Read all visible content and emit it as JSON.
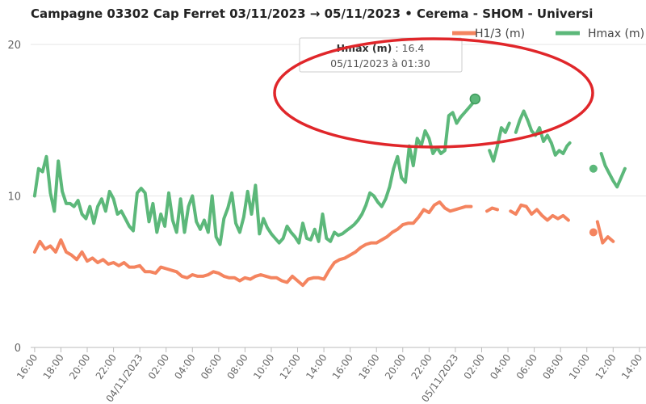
{
  "chart_data": {
    "type": "line",
    "title": "Campagne 03302 Cap Ferret 03/11/2023 → 05/11/2023   •   Cerema - SHOM - Universi",
    "y_ticks": [
      "0",
      "10",
      "20"
    ],
    "ylim": [
      0,
      20
    ],
    "grid": true,
    "x_ticks": [
      "16:00",
      "18:00",
      "20:00",
      "22:00",
      "04/11/2023",
      "02:00",
      "04:00",
      "06:00",
      "08:00",
      "10:00",
      "12:00",
      "14:00",
      "16:00",
      "18:00",
      "20:00",
      "22:00",
      "05/11/2023",
      "02:00",
      "04:00",
      "06:00",
      "08:00",
      "10:00",
      "12:00",
      "14:00"
    ],
    "x_hours_range": [
      -0.3,
      46.5
    ],
    "legend": [
      {
        "name": "H1/3 (m)",
        "color": "#f4845f"
      },
      {
        "name": "Hmax (m)",
        "color": "#5cb87a"
      }
    ],
    "series": [
      {
        "name": "Hmax (m)",
        "color": "#5cb87a",
        "segments": [
          [
            [
              0,
              10
            ],
            [
              0.3,
              11.8
            ],
            [
              0.6,
              11.6
            ],
            [
              0.9,
              12.6
            ],
            [
              1.2,
              10.2
            ],
            [
              1.5,
              9.0
            ],
            [
              1.8,
              12.3
            ],
            [
              2.1,
              10.3
            ],
            [
              2.4,
              9.5
            ],
            [
              2.7,
              9.5
            ],
            [
              3,
              9.3
            ],
            [
              3.3,
              9.7
            ],
            [
              3.6,
              8.8
            ],
            [
              3.9,
              8.5
            ],
            [
              4.2,
              9.3
            ],
            [
              4.5,
              8.2
            ],
            [
              4.8,
              9.3
            ],
            [
              5.1,
              9.8
            ],
            [
              5.4,
              9.0
            ],
            [
              5.7,
              10.3
            ],
            [
              6,
              9.8
            ],
            [
              6.3,
              8.8
            ],
            [
              6.6,
              9.0
            ],
            [
              6.9,
              8.5
            ],
            [
              7.2,
              8.0
            ],
            [
              7.5,
              7.7
            ],
            [
              7.8,
              10.2
            ],
            [
              8.1,
              10.5
            ],
            [
              8.4,
              10.2
            ],
            [
              8.7,
              8.3
            ],
            [
              9,
              9.5
            ],
            [
              9.3,
              7.6
            ],
            [
              9.6,
              8.8
            ],
            [
              9.9,
              8.0
            ],
            [
              10.2,
              10.2
            ],
            [
              10.5,
              8.4
            ],
            [
              10.8,
              7.6
            ],
            [
              11.1,
              9.8
            ],
            [
              11.4,
              7.6
            ],
            [
              11.7,
              9.3
            ],
            [
              12,
              10.0
            ],
            [
              12.3,
              8.3
            ],
            [
              12.6,
              7.8
            ],
            [
              12.9,
              8.4
            ],
            [
              13.2,
              7.6
            ],
            [
              13.5,
              10.0
            ],
            [
              13.8,
              7.3
            ],
            [
              14.1,
              6.8
            ],
            [
              14.4,
              8.5
            ],
            [
              14.7,
              9.2
            ],
            [
              15,
              10.2
            ],
            [
              15.3,
              8.2
            ],
            [
              15.6,
              7.6
            ],
            [
              15.9,
              8.6
            ],
            [
              16.2,
              10.3
            ],
            [
              16.5,
              8.8
            ],
            [
              16.8,
              10.7
            ],
            [
              17.1,
              7.5
            ],
            [
              17.4,
              8.5
            ],
            [
              17.7,
              7.9
            ],
            [
              18,
              7.5
            ],
            [
              18.3,
              7.2
            ],
            [
              18.6,
              6.9
            ],
            [
              18.9,
              7.2
            ],
            [
              19.2,
              8.0
            ],
            [
              19.5,
              7.6
            ],
            [
              19.8,
              7.3
            ],
            [
              20.1,
              6.9
            ],
            [
              20.4,
              8.2
            ],
            [
              20.7,
              7.2
            ],
            [
              21,
              7.1
            ],
            [
              21.3,
              7.8
            ],
            [
              21.6,
              7.0
            ],
            [
              21.9,
              8.8
            ],
            [
              22.2,
              7.2
            ],
            [
              22.5,
              7.0
            ],
            [
              22.8,
              7.6
            ],
            [
              23.1,
              7.4
            ],
            [
              23.4,
              7.5
            ],
            [
              23.7,
              7.7
            ],
            [
              24,
              7.9
            ],
            [
              24.3,
              8.1
            ],
            [
              24.6,
              8.4
            ],
            [
              24.9,
              8.8
            ],
            [
              25.2,
              9.4
            ],
            [
              25.5,
              10.2
            ],
            [
              25.8,
              10.0
            ],
            [
              26.1,
              9.6
            ],
            [
              26.4,
              9.3
            ],
            [
              26.7,
              9.8
            ],
            [
              27,
              10.6
            ],
            [
              27.3,
              11.8
            ],
            [
              27.6,
              12.6
            ],
            [
              27.9,
              11.2
            ],
            [
              28.2,
              10.9
            ],
            [
              28.5,
              13.3
            ],
            [
              28.8,
              12.0
            ],
            [
              29.1,
              13.8
            ],
            [
              29.4,
              13.3
            ],
            [
              29.7,
              14.3
            ],
            [
              30,
              13.8
            ],
            [
              30.3,
              12.8
            ],
            [
              30.6,
              13.2
            ],
            [
              30.9,
              12.8
            ],
            [
              31.2,
              13.0
            ],
            [
              31.5,
              15.3
            ],
            [
              31.8,
              15.5
            ],
            [
              32.1,
              14.8
            ],
            [
              32.4,
              15.2
            ],
            [
              32.7,
              15.5
            ],
            [
              33,
              15.8
            ],
            [
              33.3,
              16.1
            ],
            [
              33.5,
              16.4
            ]
          ],
          [
            [
              34.6,
              13.0
            ],
            [
              34.9,
              12.3
            ],
            [
              35.2,
              13.3
            ],
            [
              35.5,
              14.5
            ],
            [
              35.8,
              14.2
            ],
            [
              36.1,
              14.8
            ]
          ],
          [
            [
              36.6,
              14.2
            ],
            [
              36.9,
              15.0
            ],
            [
              37.2,
              15.6
            ],
            [
              37.5,
              15.0
            ],
            [
              37.8,
              14.3
            ],
            [
              38.1,
              14.0
            ],
            [
              38.4,
              14.5
            ],
            [
              38.7,
              13.6
            ],
            [
              39,
              14.0
            ],
            [
              39.3,
              13.5
            ],
            [
              39.6,
              12.7
            ],
            [
              39.9,
              13.0
            ],
            [
              40.2,
              12.8
            ],
            [
              40.5,
              13.3
            ],
            [
              40.7,
              13.5
            ]
          ],
          [
            [
              43.1,
              12.8
            ],
            [
              43.4,
              12.0
            ],
            [
              43.7,
              11.5
            ],
            [
              44,
              11.0
            ],
            [
              44.3,
              10.6
            ],
            [
              44.6,
              11.2
            ],
            [
              44.9,
              11.8
            ]
          ]
        ],
        "points": [
          [
            42.5,
            11.8
          ]
        ],
        "highlight": [
          33.5,
          16.4
        ]
      },
      {
        "name": "H1/3 (m)",
        "color": "#f4845f",
        "segments": [
          [
            [
              0,
              6.3
            ],
            [
              0.4,
              7.0
            ],
            [
              0.8,
              6.5
            ],
            [
              1.2,
              6.7
            ],
            [
              1.6,
              6.3
            ],
            [
              2,
              7.1
            ],
            [
              2.4,
              6.3
            ],
            [
              2.8,
              6.1
            ],
            [
              3.2,
              5.8
            ],
            [
              3.6,
              6.3
            ],
            [
              4,
              5.7
            ],
            [
              4.4,
              5.9
            ],
            [
              4.8,
              5.6
            ],
            [
              5.2,
              5.8
            ],
            [
              5.6,
              5.5
            ],
            [
              6,
              5.6
            ],
            [
              6.4,
              5.4
            ],
            [
              6.8,
              5.6
            ],
            [
              7.2,
              5.3
            ],
            [
              7.6,
              5.3
            ],
            [
              8,
              5.4
            ],
            [
              8.4,
              5.0
            ],
            [
              8.8,
              5.0
            ],
            [
              9.2,
              4.9
            ],
            [
              9.6,
              5.3
            ],
            [
              10,
              5.2
            ],
            [
              10.4,
              5.1
            ],
            [
              10.8,
              5.0
            ],
            [
              11.2,
              4.7
            ],
            [
              11.6,
              4.6
            ],
            [
              12,
              4.8
            ],
            [
              12.4,
              4.7
            ],
            [
              12.8,
              4.7
            ],
            [
              13.2,
              4.8
            ],
            [
              13.6,
              5.0
            ],
            [
              14,
              4.9
            ],
            [
              14.4,
              4.7
            ],
            [
              14.8,
              4.6
            ],
            [
              15.2,
              4.6
            ],
            [
              15.6,
              4.4
            ],
            [
              16,
              4.6
            ],
            [
              16.4,
              4.5
            ],
            [
              16.8,
              4.7
            ],
            [
              17.2,
              4.8
            ],
            [
              17.6,
              4.7
            ],
            [
              18,
              4.6
            ],
            [
              18.4,
              4.6
            ],
            [
              18.8,
              4.4
            ],
            [
              19.2,
              4.3
            ],
            [
              19.6,
              4.7
            ],
            [
              20,
              4.4
            ],
            [
              20.4,
              4.1
            ],
            [
              20.8,
              4.5
            ],
            [
              21.2,
              4.6
            ],
            [
              21.6,
              4.6
            ],
            [
              22,
              4.5
            ],
            [
              22.4,
              5.1
            ],
            [
              22.8,
              5.6
            ],
            [
              23.2,
              5.8
            ],
            [
              23.6,
              5.9
            ],
            [
              24,
              6.1
            ],
            [
              24.4,
              6.3
            ],
            [
              24.8,
              6.6
            ],
            [
              25.2,
              6.8
            ],
            [
              25.6,
              6.9
            ],
            [
              26,
              6.9
            ],
            [
              26.4,
              7.1
            ],
            [
              26.8,
              7.3
            ],
            [
              27.2,
              7.6
            ],
            [
              27.6,
              7.8
            ],
            [
              28,
              8.1
            ],
            [
              28.4,
              8.2
            ],
            [
              28.8,
              8.2
            ],
            [
              29.2,
              8.6
            ],
            [
              29.6,
              9.1
            ],
            [
              30,
              8.9
            ],
            [
              30.4,
              9.4
            ],
            [
              30.8,
              9.6
            ],
            [
              31.2,
              9.2
            ],
            [
              31.6,
              9.0
            ],
            [
              32,
              9.1
            ],
            [
              32.4,
              9.2
            ],
            [
              32.8,
              9.3
            ],
            [
              33.2,
              9.3
            ]
          ],
          [
            [
              34.4,
              9.0
            ],
            [
              34.8,
              9.2
            ],
            [
              35.2,
              9.1
            ]
          ],
          [
            [
              36.2,
              9.0
            ],
            [
              36.6,
              8.8
            ],
            [
              37,
              9.4
            ],
            [
              37.4,
              9.3
            ],
            [
              37.8,
              8.8
            ],
            [
              38.2,
              9.1
            ],
            [
              38.6,
              8.7
            ],
            [
              39,
              8.4
            ],
            [
              39.4,
              8.7
            ],
            [
              39.8,
              8.5
            ],
            [
              40.2,
              8.7
            ],
            [
              40.6,
              8.4
            ]
          ],
          [
            [
              42.8,
              8.3
            ],
            [
              43.2,
              6.9
            ],
            [
              43.6,
              7.3
            ],
            [
              44,
              7.0
            ]
          ]
        ],
        "points": [
          [
            42.5,
            7.6
          ]
        ]
      }
    ],
    "tooltip": {
      "series_label": "Hmax (m)",
      "value_text": " : 16.4",
      "datetime": "05/11/2023 à 01:30"
    },
    "annotation": {
      "shape": "ellipse",
      "color": "#e0262a"
    }
  }
}
